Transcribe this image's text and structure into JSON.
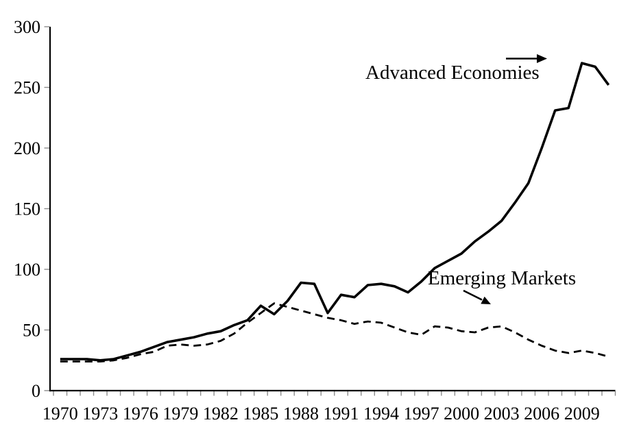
{
  "page": {
    "background": "#ffffff"
  },
  "chart_data": {
    "type": "line",
    "title": "",
    "xlabel": "",
    "ylabel": "",
    "grid": false,
    "legend_position": "none (inline annotations with arrows)",
    "ylim": [
      0,
      300
    ],
    "y_ticks": [
      0,
      50,
      100,
      150,
      200,
      250,
      300
    ],
    "x_range": [
      1970,
      2011
    ],
    "x_tick_label_step": 3,
    "x_tick_labels": [
      "1970",
      "1973",
      "1976",
      "1979",
      "1982",
      "1985",
      "1988",
      "1991",
      "1994",
      "1997",
      "2000",
      "2003",
      "2006",
      "2009"
    ],
    "years": [
      1970,
      1971,
      1972,
      1973,
      1974,
      1975,
      1976,
      1977,
      1978,
      1979,
      1980,
      1981,
      1982,
      1983,
      1984,
      1985,
      1986,
      1987,
      1988,
      1989,
      1990,
      1991,
      1992,
      1993,
      1994,
      1995,
      1996,
      1997,
      1998,
      1999,
      2000,
      2001,
      2002,
      2003,
      2004,
      2005,
      2006,
      2007,
      2008,
      2009,
      2010,
      2011
    ],
    "series": [
      {
        "name": "Advanced Economies",
        "line_style": "solid",
        "color": "#000000",
        "values": [
          26,
          26,
          26,
          25,
          26,
          29,
          32,
          36,
          40,
          42,
          44,
          47,
          49,
          54,
          58,
          70,
          63,
          74,
          89,
          88,
          64,
          79,
          77,
          87,
          88,
          86,
          81,
          90,
          101,
          107,
          113,
          123,
          131,
          140,
          155,
          171,
          200,
          231,
          233,
          270,
          267,
          252
        ]
      },
      {
        "name": "Emerging Markets",
        "line_style": "dashed",
        "color": "#000000",
        "values": [
          24,
          24,
          24,
          24,
          25,
          27,
          30,
          32,
          37,
          38,
          37,
          38,
          41,
          47,
          56,
          64,
          72,
          69,
          66,
          63,
          60,
          58,
          55,
          57,
          56,
          52,
          48,
          46,
          53,
          52,
          49,
          48,
          52,
          53,
          48,
          42,
          37,
          33,
          31,
          33,
          31,
          28
        ]
      }
    ],
    "annotations": [
      {
        "label": "Advanced Economies",
        "arrow": "horizontal-right",
        "points_to": "solid line peak region"
      },
      {
        "label": "Emerging Markets",
        "arrow": "down-right",
        "points_to": "dashed line"
      }
    ],
    "axis_color": "#000000",
    "tick_mark_color": "#8c8c8c"
  }
}
